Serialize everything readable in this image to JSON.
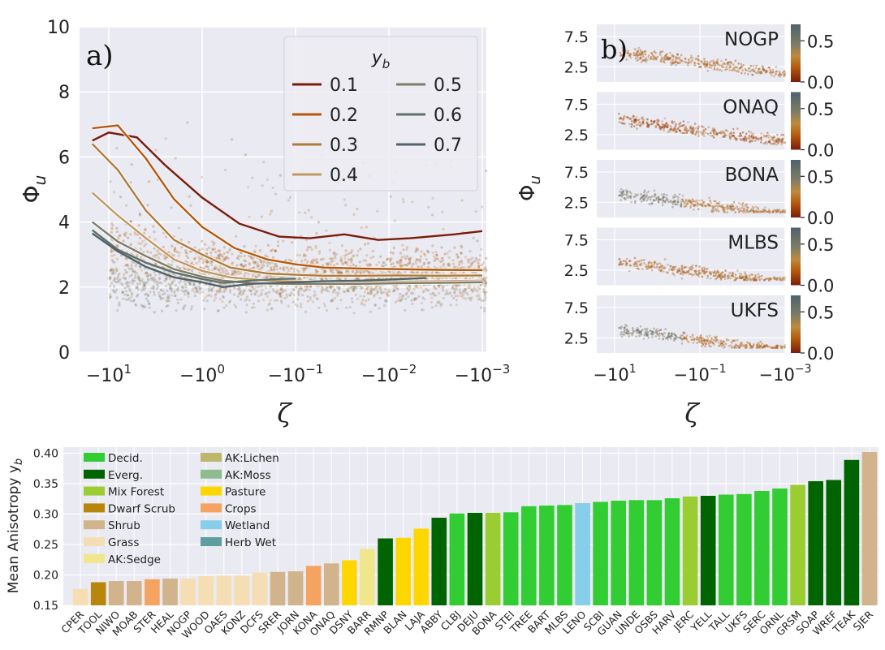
{
  "chart_data": [
    {
      "id": "a",
      "type": "line",
      "panel_label": "a)",
      "xlabel": "ζ",
      "ylabel": "Φ",
      "ylabel_sub": "u",
      "x_scale": "symlog (negative)",
      "x_ticks": [
        {
          "value": -10,
          "base": "−10",
          "exp": "1"
        },
        {
          "value": -1,
          "base": "−10",
          "exp": "0"
        },
        {
          "value": -0.1,
          "base": "−10",
          "exp": "−1"
        },
        {
          "value": -0.01,
          "base": "−10",
          "exp": "−2"
        },
        {
          "value": -0.001,
          "base": "−10",
          "exp": "−3"
        }
      ],
      "y_ticks": [
        "0",
        "2",
        "4",
        "6",
        "8",
        "10"
      ],
      "ylim": [
        0,
        10
      ],
      "grid": true,
      "legend": {
        "title": "y",
        "title_sub": "b",
        "placement": "top-right",
        "columns": 2
      },
      "series": [
        {
          "name": "0.1",
          "color": "#7a1c0a",
          "x": [
            -15,
            -10,
            -5,
            -2.5,
            -1,
            -0.4,
            -0.15,
            -0.07,
            -0.03,
            -0.013,
            -0.006,
            -0.002,
            -0.001
          ],
          "y": [
            6.5,
            6.75,
            6.6,
            5.75,
            4.75,
            3.95,
            3.55,
            3.5,
            3.62,
            3.45,
            3.5,
            3.62,
            3.72
          ]
        },
        {
          "name": "0.2",
          "color": "#b5590c",
          "x": [
            -15,
            -8,
            -4,
            -2,
            -1,
            -0.45,
            -0.2,
            -0.1,
            -0.05,
            -0.02,
            -0.008,
            -0.003,
            -0.001
          ],
          "y": [
            6.88,
            6.97,
            5.95,
            4.7,
            3.85,
            3.2,
            2.85,
            2.7,
            2.6,
            2.57,
            2.55,
            2.53,
            2.52
          ]
        },
        {
          "name": "0.3",
          "color": "#b07c3a",
          "x": [
            -15,
            -8,
            -4,
            -2,
            -1,
            -0.5,
            -0.2,
            -0.1,
            -0.05,
            -0.02,
            -0.008,
            -0.003,
            -0.001
          ],
          "y": [
            6.4,
            5.6,
            4.35,
            3.45,
            3.0,
            2.6,
            2.42,
            2.38,
            2.35,
            2.35,
            2.36,
            2.35,
            2.36
          ]
        },
        {
          "name": "0.4",
          "color": "#c09a62",
          "x": [
            -15,
            -8,
            -4,
            -2,
            -1,
            -0.5,
            -0.2,
            -0.1,
            -0.05,
            -0.02,
            -0.008,
            -0.003,
            -0.001
          ],
          "y": [
            4.9,
            4.2,
            3.5,
            2.85,
            2.5,
            2.3,
            2.2,
            2.17,
            2.15,
            2.15,
            2.17,
            2.18,
            2.2
          ]
        },
        {
          "name": "0.5",
          "color": "#7d7d68",
          "x": [
            -15,
            -8,
            -4,
            -2,
            -1,
            -0.6,
            -0.3,
            -0.12,
            -0.05,
            -0.02,
            -0.008,
            -0.003,
            -0.001
          ],
          "y": [
            4.0,
            3.4,
            2.95,
            2.55,
            2.32,
            2.2,
            2.12,
            2.1,
            2.1,
            2.1,
            2.12,
            2.13,
            2.15
          ]
        },
        {
          "name": "0.6",
          "color": "#5f7268",
          "x": [
            -15,
            -8,
            -4,
            -2,
            -1,
            -0.6,
            -0.3,
            -0.15,
            -0.1
          ],
          "y": [
            3.75,
            3.15,
            2.75,
            2.45,
            2.25,
            2.13,
            2.2,
            2.25,
            2.26
          ]
        },
        {
          "name": "0.7",
          "color": "#52636c",
          "x": [
            -15,
            -8,
            -4,
            -2,
            -1,
            -0.6,
            -0.3,
            -0.1,
            -0.05,
            -0.02,
            -0.007,
            -0.004
          ],
          "y": [
            3.65,
            3.1,
            2.62,
            2.3,
            2.15,
            2.0,
            2.1,
            2.15,
            2.18,
            2.2,
            2.25,
            2.28
          ]
        }
      ]
    },
    {
      "id": "b",
      "type": "scatter",
      "panel_label": "b)",
      "xlabel": "ζ",
      "ylabel": "Φ",
      "ylabel_sub": "u",
      "x_ticks": [
        {
          "value": -10,
          "base": "−10",
          "exp": "1"
        },
        {
          "value": -0.1,
          "base": "−10",
          "exp": "−1"
        },
        {
          "value": -0.001,
          "base": "−10",
          "exp": "−3"
        }
      ],
      "y_ticks": [
        "7.5",
        "2.5"
      ],
      "colorbar_ticks": [
        "0.5",
        "0.0"
      ],
      "colorbar_range": [
        0.0,
        0.7
      ],
      "subplots": [
        {
          "site": "NOGP"
        },
        {
          "site": "ONAQ"
        },
        {
          "site": "BONA"
        },
        {
          "site": "MLBS"
        },
        {
          "site": "UKFS"
        }
      ]
    },
    {
      "id": "c",
      "type": "bar",
      "ylabel": "Mean Anisotropy y",
      "ylabel_sub": "b",
      "ylim": [
        0.15,
        0.41
      ],
      "y_ticks": [
        "0.15",
        "0.20",
        "0.25",
        "0.30",
        "0.35",
        "0.40"
      ],
      "grid": true,
      "legend": {
        "placement": "top-left",
        "entries": [
          {
            "label": "Decid.",
            "color": "#32cd32"
          },
          {
            "label": "Everg.",
            "color": "#006400"
          },
          {
            "label": "Mix Forest",
            "color": "#9acd32"
          },
          {
            "label": "Dwarf Scrub",
            "color": "#b8860b"
          },
          {
            "label": "Shrub",
            "color": "#d2b48c"
          },
          {
            "label": "Grass",
            "color": "#f5deb3"
          },
          {
            "label": "AK:Sedge",
            "color": "#f0e68c"
          },
          {
            "label": "AK:Lichen",
            "color": "#bdb76b"
          },
          {
            "label": "AK:Moss",
            "color": "#8fbc8f"
          },
          {
            "label": "Pasture",
            "color": "#ffd700"
          },
          {
            "label": "Crops",
            "color": "#f4a460"
          },
          {
            "label": "Wetland",
            "color": "#87ceeb"
          },
          {
            "label": "Herb Wet",
            "color": "#5f9ea0"
          }
        ]
      },
      "categories": [
        "CPER",
        "TOOL",
        "NIWO",
        "MOAB",
        "STER",
        "HEAL",
        "NOGP",
        "WOOD",
        "OAES",
        "KONZ",
        "DCFS",
        "SRER",
        "JORN",
        "KONA",
        "ONAQ",
        "DSNY",
        "BARR",
        "RMNP",
        "BLAN",
        "LAJA",
        "ABBY",
        "CLBJ",
        "DEJU",
        "BONA",
        "STEI",
        "TREE",
        "BART",
        "MLBS",
        "LENO",
        "SCBI",
        "GUAN",
        "UNDE",
        "OSBS",
        "HARV",
        "JERC",
        "YELL",
        "TALL",
        "UKFS",
        "SERC",
        "ORNL",
        "GRSM",
        "SOAP",
        "WREF",
        "TEAK",
        "SJER"
      ],
      "values": [
        0.177,
        0.188,
        0.19,
        0.19,
        0.193,
        0.194,
        0.194,
        0.198,
        0.199,
        0.199,
        0.204,
        0.205,
        0.206,
        0.215,
        0.219,
        0.224,
        0.243,
        0.26,
        0.261,
        0.276,
        0.294,
        0.301,
        0.302,
        0.302,
        0.303,
        0.313,
        0.314,
        0.315,
        0.318,
        0.32,
        0.322,
        0.323,
        0.323,
        0.326,
        0.329,
        0.33,
        0.332,
        0.333,
        0.338,
        0.342,
        0.348,
        0.354,
        0.356,
        0.389,
        0.402
      ],
      "bar_colors": [
        "#f5deb3",
        "#b8860b",
        "#d2b48c",
        "#d2b48c",
        "#f4a460",
        "#d2b48c",
        "#f5deb3",
        "#f5deb3",
        "#f5deb3",
        "#f5deb3",
        "#f5deb3",
        "#d2b48c",
        "#d2b48c",
        "#f4a460",
        "#d2b48c",
        "#ffd700",
        "#f0e68c",
        "#006400",
        "#ffd700",
        "#ffd700",
        "#006400",
        "#32cd32",
        "#006400",
        "#9acd32",
        "#32cd32",
        "#32cd32",
        "#32cd32",
        "#32cd32",
        "#87ceeb",
        "#32cd32",
        "#32cd32",
        "#32cd32",
        "#32cd32",
        "#32cd32",
        "#9acd32",
        "#006400",
        "#32cd32",
        "#32cd32",
        "#32cd32",
        "#32cd32",
        "#9acd32",
        "#006400",
        "#006400",
        "#006400",
        "#d2b48c"
      ]
    }
  ]
}
